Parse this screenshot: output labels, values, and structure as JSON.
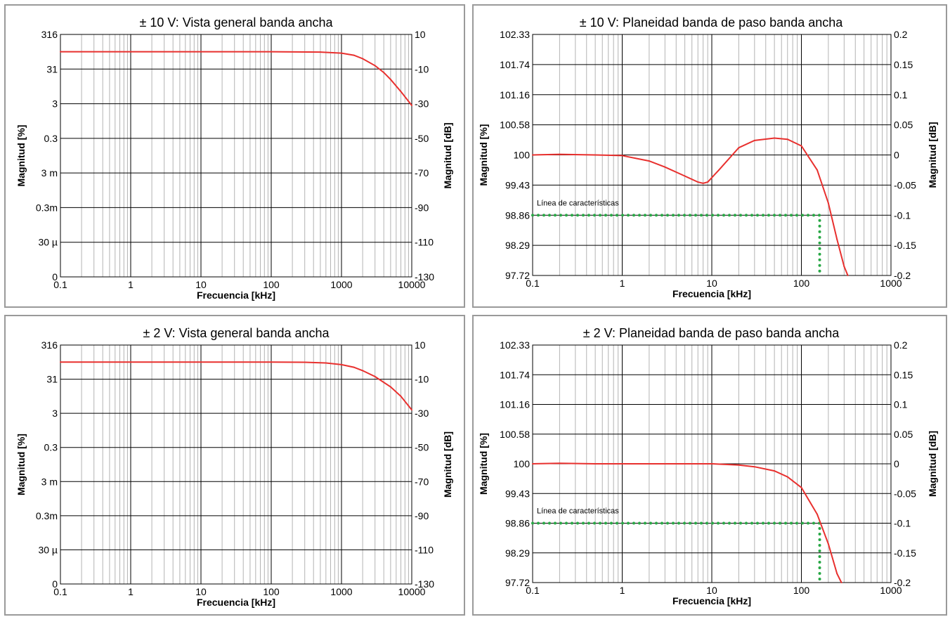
{
  "chart_data": [
    {
      "type": "line",
      "title": "± 10 V: Vista general banda ancha",
      "xlabel": "Frecuencia [kHz]",
      "ylabel": "Magnitud [%]",
      "y2label": "Magnitud [dB]",
      "x_scale": "log",
      "xlim": [
        0.1,
        10000
      ],
      "x_ticks": [
        "0.1",
        "1",
        "10",
        "100",
        "1000",
        "10000"
      ],
      "y_scale": "dB",
      "ylim_db": [
        -130,
        10
      ],
      "y_ticks_left": [
        "316",
        "31",
        "3",
        "0.3",
        "3 m",
        "0.3m",
        "30 µ",
        "0"
      ],
      "y_ticks_right": [
        "10",
        "-10",
        "-30",
        "-50",
        "-70",
        "-90",
        "-110",
        "-130"
      ],
      "grid": true,
      "series": [
        {
          "color": "#e8302e",
          "x": [
            0.1,
            1,
            10,
            100,
            500,
            1000,
            1500,
            2000,
            3000,
            4000,
            5000,
            7000,
            10000
          ],
          "y": [
            0,
            0,
            0,
            0,
            -0.2,
            -0.8,
            -2,
            -4,
            -8,
            -12,
            -16,
            -23,
            -31
          ]
        }
      ]
    },
    {
      "type": "line",
      "title": "± 10 V: Planeidad banda de paso banda ancha",
      "xlabel": "Frecuencia [kHz]",
      "ylabel": "Magnitud [%]",
      "y2label": "Magnitud [dB]",
      "x_scale": "log",
      "xlim": [
        0.1,
        1000
      ],
      "x_ticks": [
        "0.1",
        "1",
        "10",
        "100",
        "1000"
      ],
      "y_scale": "dB",
      "ylim_db": [
        -0.2,
        0.2
      ],
      "y_ticks_left": [
        "102.33",
        "101.74",
        "101.16",
        "100.58",
        "100",
        "99.43",
        "98.86",
        "98.29",
        "97.72"
      ],
      "y_ticks_right": [
        "0.2",
        "0.15",
        "0.1",
        "0.05",
        "0",
        "-0.05",
        "-0.1",
        "-0.15",
        "-0.2"
      ],
      "grid": true,
      "annotation": "Línea de características",
      "characteristic_line": {
        "level_db": -0.1,
        "cutoff_khz": 160
      },
      "series": [
        {
          "color": "#e8302e",
          "x": [
            0.1,
            0.2,
            0.5,
            1,
            2,
            3,
            5,
            7,
            8,
            9,
            12,
            20,
            30,
            50,
            70,
            100,
            150,
            200,
            250,
            300,
            330
          ],
          "y": [
            0,
            0.001,
            0,
            -0.001,
            -0.01,
            -0.02,
            -0.035,
            -0.045,
            -0.047,
            -0.045,
            -0.025,
            0.012,
            0.024,
            0.028,
            0.026,
            0.015,
            -0.025,
            -0.08,
            -0.14,
            -0.185,
            -0.2
          ]
        }
      ]
    },
    {
      "type": "line",
      "title": "± 2 V: Vista general banda ancha",
      "xlabel": "Frecuencia [kHz]",
      "ylabel": "Magnitud [%]",
      "y2label": "Magnitud [dB]",
      "x_scale": "log",
      "xlim": [
        0.1,
        10000
      ],
      "x_ticks": [
        "0.1",
        "1",
        "10",
        "100",
        "1000",
        "10000"
      ],
      "y_scale": "dB",
      "ylim_db": [
        -130,
        10
      ],
      "y_ticks_left": [
        "316",
        "31",
        "3",
        "0.3",
        "3 m",
        "0.3m",
        "30 µ",
        "0"
      ],
      "y_ticks_right": [
        "10",
        "-10",
        "-30",
        "-50",
        "-70",
        "-90",
        "-110",
        "-130"
      ],
      "grid": true,
      "series": [
        {
          "color": "#e8302e",
          "x": [
            0.1,
            1,
            10,
            100,
            300,
            600,
            1000,
            1500,
            2000,
            3000,
            5000,
            7000,
            10000
          ],
          "y": [
            0,
            0,
            0,
            0,
            -0.1,
            -0.5,
            -1.5,
            -3,
            -5,
            -8.5,
            -14.5,
            -20,
            -28
          ]
        }
      ]
    },
    {
      "type": "line",
      "title": "± 2 V: Planeidad banda de paso banda ancha",
      "xlabel": "Frecuencia [kHz]",
      "ylabel": "Magnitud [%]",
      "y2label": "Magnitud [dB]",
      "x_scale": "log",
      "xlim": [
        0.1,
        1000
      ],
      "x_ticks": [
        "0.1",
        "1",
        "10",
        "100",
        "1000"
      ],
      "y_scale": "dB",
      "ylim_db": [
        -0.2,
        0.2
      ],
      "y_ticks_left": [
        "102.33",
        "101.74",
        "101.16",
        "100.58",
        "100",
        "99.43",
        "98.86",
        "98.29",
        "97.72"
      ],
      "y_ticks_right": [
        "0.2",
        "0.15",
        "0.1",
        "0.05",
        "0",
        "-0.05",
        "-0.1",
        "-0.15",
        "-0.2"
      ],
      "grid": true,
      "annotation": "Línea de características",
      "characteristic_line": {
        "level_db": -0.1,
        "cutoff_khz": 160
      },
      "series": [
        {
          "color": "#e8302e",
          "x": [
            0.1,
            0.2,
            0.5,
            1,
            2,
            5,
            10,
            20,
            30,
            50,
            70,
            100,
            150,
            200,
            250,
            280
          ],
          "y": [
            0,
            0.001,
            0,
            0,
            0,
            0,
            0,
            -0.002,
            -0.005,
            -0.012,
            -0.022,
            -0.04,
            -0.085,
            -0.135,
            -0.185,
            -0.2
          ]
        }
      ]
    }
  ],
  "colors": {
    "curve": "#e8302e",
    "characteristic": "#28a745",
    "grid_major": "#000000",
    "grid_minor": "#b3b3b3",
    "frame": "#9a9a9a"
  }
}
